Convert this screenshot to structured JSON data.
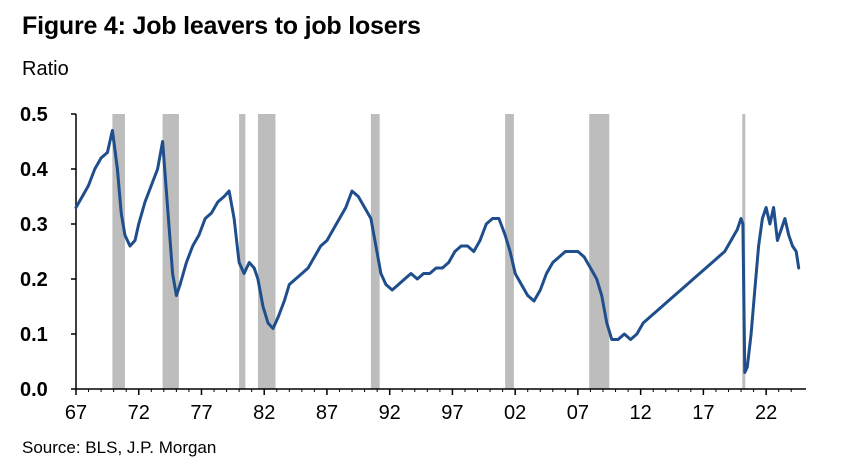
{
  "title": "Figure 4: Job leavers to job losers",
  "subtitle": "Ratio",
  "source": "Source: BLS, J.P. Morgan",
  "colors": {
    "line": "#1f4e8c",
    "recession": "#bdbdbd",
    "axis": "#000000"
  },
  "chart_data": {
    "type": "line",
    "title": "Figure 4: Job leavers to job losers",
    "ylabel": "Ratio",
    "xlabel": "",
    "ylim": [
      0.0,
      0.5
    ],
    "xlim": [
      1967,
      2024.7
    ],
    "y_ticks": [
      "0.0",
      "0.1",
      "0.2",
      "0.3",
      "0.4",
      "0.5"
    ],
    "x_ticks": [
      {
        "x": 1967,
        "label": "67"
      },
      {
        "x": 1972,
        "label": "72"
      },
      {
        "x": 1977,
        "label": "77"
      },
      {
        "x": 1982,
        "label": "82"
      },
      {
        "x": 1987,
        "label": "87"
      },
      {
        "x": 1992,
        "label": "92"
      },
      {
        "x": 1997,
        "label": "97"
      },
      {
        "x": 2002,
        "label": "02"
      },
      {
        "x": 2007,
        "label": "07"
      },
      {
        "x": 2012,
        "label": "12"
      },
      {
        "x": 2017,
        "label": "17"
      },
      {
        "x": 2022,
        "label": "22"
      }
    ],
    "grid": false,
    "recessions": [
      [
        1969.9,
        1970.9
      ],
      [
        1973.9,
        1975.2
      ],
      [
        1980.0,
        1980.5
      ],
      [
        1981.5,
        1982.9
      ],
      [
        1990.5,
        1991.2
      ],
      [
        2001.2,
        2001.9
      ],
      [
        2007.9,
        2009.5
      ],
      [
        2020.1,
        2020.3
      ]
    ],
    "series": [
      {
        "x": [
          1967.0,
          1967.5,
          1968.0,
          1968.5,
          1969.0,
          1969.5,
          1969.9,
          1970.3,
          1970.6,
          1970.9,
          1971.3,
          1971.7,
          1972.0,
          1972.5,
          1973.0,
          1973.5,
          1973.9,
          1974.3,
          1974.7,
          1975.0,
          1975.3,
          1975.8,
          1976.3,
          1976.8,
          1977.3,
          1977.8,
          1978.3,
          1978.8,
          1979.2,
          1979.6,
          1980.0,
          1980.4,
          1980.8,
          1981.2,
          1981.5,
          1981.9,
          1982.3,
          1982.7,
          1983.1,
          1983.6,
          1984.0,
          1984.5,
          1985.0,
          1985.5,
          1986.0,
          1986.5,
          1987.0,
          1987.5,
          1988.0,
          1988.5,
          1989.0,
          1989.5,
          1990.0,
          1990.5,
          1990.9,
          1991.3,
          1991.7,
          1992.2,
          1992.7,
          1993.2,
          1993.7,
          1994.2,
          1994.7,
          1995.2,
          1995.7,
          1996.2,
          1996.7,
          1997.2,
          1997.7,
          1998.2,
          1998.7,
          1999.2,
          1999.7,
          2000.2,
          2000.7,
          2001.2,
          2001.6,
          2002.0,
          2002.5,
          2003.0,
          2003.5,
          2004.0,
          2004.5,
          2005.0,
          2005.5,
          2006.0,
          2006.5,
          2007.0,
          2007.5,
          2008.0,
          2008.5,
          2008.9,
          2009.3,
          2009.7,
          2010.2,
          2010.7,
          2011.2,
          2011.7,
          2012.2,
          2012.7,
          2013.2,
          2013.7,
          2014.2,
          2014.7,
          2015.2,
          2015.7,
          2016.2,
          2016.7,
          2017.2,
          2017.7,
          2018.2,
          2018.7,
          2019.2,
          2019.7,
          2020.0,
          2020.15,
          2020.3,
          2020.5,
          2020.8,
          2021.1,
          2021.4,
          2021.7,
          2022.0,
          2022.3,
          2022.6,
          2022.9,
          2023.2,
          2023.5,
          2023.8,
          2024.1,
          2024.4,
          2024.6
        ],
        "y": [
          0.33,
          0.35,
          0.37,
          0.4,
          0.42,
          0.43,
          0.47,
          0.4,
          0.32,
          0.28,
          0.26,
          0.27,
          0.3,
          0.34,
          0.37,
          0.4,
          0.45,
          0.33,
          0.21,
          0.17,
          0.19,
          0.23,
          0.26,
          0.28,
          0.31,
          0.32,
          0.34,
          0.35,
          0.36,
          0.31,
          0.23,
          0.21,
          0.23,
          0.22,
          0.2,
          0.15,
          0.12,
          0.11,
          0.13,
          0.16,
          0.19,
          0.2,
          0.21,
          0.22,
          0.24,
          0.26,
          0.27,
          0.29,
          0.31,
          0.33,
          0.36,
          0.35,
          0.33,
          0.31,
          0.26,
          0.21,
          0.19,
          0.18,
          0.19,
          0.2,
          0.21,
          0.2,
          0.21,
          0.21,
          0.22,
          0.22,
          0.23,
          0.25,
          0.26,
          0.26,
          0.25,
          0.27,
          0.3,
          0.31,
          0.31,
          0.28,
          0.25,
          0.21,
          0.19,
          0.17,
          0.16,
          0.18,
          0.21,
          0.23,
          0.24,
          0.25,
          0.25,
          0.25,
          0.24,
          0.22,
          0.2,
          0.17,
          0.12,
          0.09,
          0.09,
          0.1,
          0.09,
          0.1,
          0.12,
          0.13,
          0.14,
          0.15,
          0.16,
          0.17,
          0.18,
          0.19,
          0.2,
          0.21,
          0.22,
          0.23,
          0.24,
          0.25,
          0.27,
          0.29,
          0.31,
          0.3,
          0.03,
          0.04,
          0.1,
          0.18,
          0.26,
          0.31,
          0.33,
          0.3,
          0.33,
          0.27,
          0.29,
          0.31,
          0.28,
          0.26,
          0.25,
          0.22
        ]
      }
    ]
  }
}
